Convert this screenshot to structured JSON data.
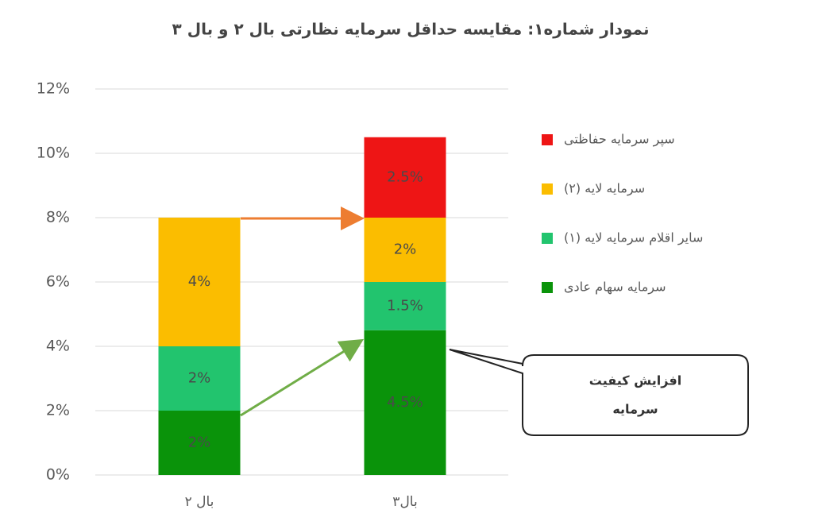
{
  "chart_data": {
    "type": "stacked-bar",
    "title": "نمودار شماره۱: مقایسه حداقل سرمایه نظارتی بال ۲ و بال ۳",
    "categories": [
      "بال ۲",
      "بال۳"
    ],
    "series": [
      {
        "name": "سرمایه سهام عادی",
        "color": "#0a930a",
        "values": [
          2,
          4.5
        ],
        "value_labels": [
          "2%",
          "4.5%"
        ]
      },
      {
        "name": "سایر اقلام سرمایه لایه (۱)",
        "color": "#22c46e",
        "values": [
          2,
          1.5
        ],
        "value_labels": [
          "2%",
          "1.5%"
        ]
      },
      {
        "name": "سرمایه لایه (۲)",
        "color": "#fbbd00",
        "values": [
          4,
          2
        ],
        "value_labels": [
          "4%",
          "2%"
        ]
      },
      {
        "name": "سپر سرمایه حفاظتی",
        "color": "#ee1515",
        "values": [
          null,
          2.5
        ],
        "value_labels": [
          null,
          "2.5%"
        ]
      }
    ],
    "ylim": [
      0,
      12
    ],
    "yticks": [
      {
        "value": 0,
        "label": "0%"
      },
      {
        "value": 2,
        "label": "2%"
      },
      {
        "value": 4,
        "label": "4%"
      },
      {
        "value": 6,
        "label": "6%"
      },
      {
        "value": 8,
        "label": "8%"
      },
      {
        "value": 10,
        "label": "10%"
      },
      {
        "value": 12,
        "label": "12%"
      }
    ],
    "grid": true,
    "legend": "right",
    "annotation": [
      "افزایش کیفیت",
      "سرمایه"
    ]
  }
}
